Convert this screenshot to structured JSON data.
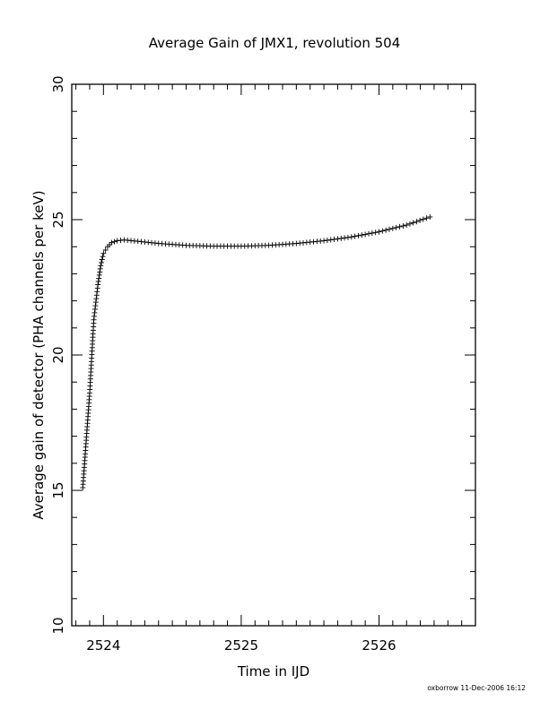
{
  "chart_data": {
    "type": "scatter",
    "title": "Average Gain of JMX1, revolution 504",
    "xlabel": "Time in IJD",
    "ylabel": "Average gain of detector (PHA channels per keV)",
    "xlim": [
      2523.77,
      2526.7
    ],
    "ylim": [
      10,
      30
    ],
    "x_ticks": [
      2524,
      2525,
      2526
    ],
    "y_ticks": [
      10,
      15,
      20,
      25,
      30
    ],
    "x_tick_labels": [
      "2524",
      "2525",
      "2526"
    ],
    "y_tick_labels": [
      "10",
      "15",
      "20",
      "25",
      "30"
    ],
    "marker": "+",
    "grid": false,
    "series": [
      {
        "x": [
          2523.85,
          2523.9,
          2523.93,
          2523.96,
          2523.98,
          2524.0,
          2524.03,
          2524.06,
          2524.1,
          2524.15,
          2524.25,
          2524.4,
          2524.6,
          2524.8,
          2525.0,
          2525.2,
          2525.4,
          2525.6,
          2525.8,
          2526.0,
          2526.2,
          2526.37
        ],
        "y": [
          15.1,
          18.6,
          21.3,
          22.6,
          23.3,
          23.75,
          24.0,
          24.15,
          24.22,
          24.25,
          24.2,
          24.12,
          24.05,
          24.02,
          24.02,
          24.05,
          24.12,
          24.22,
          24.36,
          24.55,
          24.8,
          25.1
        ]
      }
    ]
  },
  "footer": "oxborrow 11-Dec-2006 16:12"
}
